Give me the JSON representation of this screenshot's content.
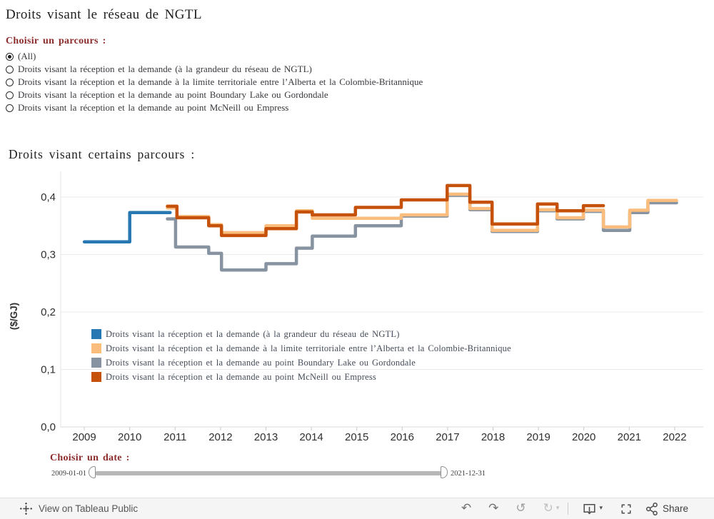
{
  "page": {
    "title": "Droits visant le réseau de NGTL"
  },
  "parameter": {
    "label": "Choisir un parcours :",
    "options": [
      {
        "label": "(All)",
        "selected": true
      },
      {
        "label": "Droits visant la réception et la demande (à la grandeur du réseau de NGTL)",
        "selected": false
      },
      {
        "label": "Droits visant la réception et la demande à la limite territoriale entre l’Alberta et la Colombie-Britannique",
        "selected": false
      },
      {
        "label": "Droits visant la réception et la demande au point Boundary Lake ou Gordondale",
        "selected": false
      },
      {
        "label": "Droits visant la réception et la demande au point McNeill ou Empress",
        "selected": false
      }
    ]
  },
  "chart": {
    "title": "Droits visant certains parcours :"
  },
  "chart_data": {
    "type": "line",
    "step": true,
    "title": "Droits visant certains parcours :",
    "xlabel": "",
    "ylabel": "($/GJ)",
    "unit": "$/GJ",
    "xlim": [
      2008.48,
      2022.63
    ],
    "ylim": [
      0,
      0.4472
    ],
    "grid": "horizontal",
    "legend_position": "inside-bottom-left",
    "x_ticks": [
      {
        "year": 2009,
        "label": "2009"
      },
      {
        "year": 2010,
        "label": "2010"
      },
      {
        "year": 2011,
        "label": "2011"
      },
      {
        "year": 2012,
        "label": "2012"
      },
      {
        "year": 2013,
        "label": "2013"
      },
      {
        "year": 2014,
        "label": "2014"
      },
      {
        "year": 2015,
        "label": "2015"
      },
      {
        "year": 2016,
        "label": "2016"
      },
      {
        "year": 2017,
        "label": "2017"
      },
      {
        "year": 2018,
        "label": "2018"
      },
      {
        "year": 2019,
        "label": "2019"
      },
      {
        "year": 2020,
        "label": "2020"
      },
      {
        "year": 2021,
        "label": "2021"
      },
      {
        "year": 2022,
        "label": "2022"
      }
    ],
    "y_ticks": [
      {
        "value": 0,
        "label": "0,0"
      },
      {
        "value": 0.1,
        "label": "0,1"
      },
      {
        "value": 0.2,
        "label": "0,2"
      },
      {
        "value": 0.3,
        "label": "0,3"
      },
      {
        "value": 0.4,
        "label": "0,4"
      }
    ],
    "draw_order": [
      0,
      2,
      1,
      3
    ],
    "series": [
      {
        "name": "Droits visant la réception et la demande (à la grandeur du réseau de NGTL)",
        "color": "#2677B2",
        "steps": [
          [
            2009.0,
            0.322
          ],
          [
            2010.0,
            0.373
          ]
        ],
        "end": 2010.89
      },
      {
        "name": "Droits visant la réception et la demande à la limite territoriale entre l’Alberta et la Colombie-Britannique",
        "color": "#FBBD7D",
        "steps": [
          [
            2010.83,
            0.381
          ],
          [
            2011.04,
            0.366
          ],
          [
            2011.74,
            0.352
          ],
          [
            2012.02,
            0.338
          ],
          [
            2013.0,
            0.35
          ],
          [
            2013.67,
            0.376
          ],
          [
            2014.02,
            0.363
          ],
          [
            2015.98,
            0.369
          ],
          [
            2016.99,
            0.405
          ],
          [
            2017.49,
            0.38
          ],
          [
            2017.98,
            0.342
          ],
          [
            2018.98,
            0.378
          ],
          [
            2019.41,
            0.364
          ],
          [
            2019.99,
            0.377
          ],
          [
            2020.43,
            0.348
          ],
          [
            2021.01,
            0.377
          ],
          [
            2021.41,
            0.394
          ]
        ],
        "end": 2022.04
      },
      {
        "name": "Droits visant la réception et la demande au point Boundary Lake ou Gordondale",
        "color": "#8793A0",
        "steps": [
          [
            2010.83,
            0.362
          ],
          [
            2011.01,
            0.313
          ],
          [
            2011.74,
            0.302
          ],
          [
            2012.02,
            0.273
          ],
          [
            2013.0,
            0.284
          ],
          [
            2013.67,
            0.311
          ],
          [
            2014.02,
            0.332
          ],
          [
            2014.97,
            0.35
          ],
          [
            2015.98,
            0.367
          ],
          [
            2016.99,
            0.403
          ],
          [
            2017.49,
            0.378
          ],
          [
            2017.98,
            0.34
          ],
          [
            2018.98,
            0.376
          ],
          [
            2019.41,
            0.362
          ],
          [
            2019.99,
            0.375
          ],
          [
            2020.43,
            0.342
          ],
          [
            2021.01,
            0.373
          ],
          [
            2021.41,
            0.39
          ]
        ],
        "end": 2022.04
      },
      {
        "name": "Droits visant la réception et la demande au point McNeill ou Empress",
        "color": "#C5510A",
        "steps": [
          [
            2010.83,
            0.384
          ],
          [
            2011.04,
            0.364
          ],
          [
            2011.74,
            0.35
          ],
          [
            2012.02,
            0.333
          ],
          [
            2013.0,
            0.345
          ],
          [
            2013.67,
            0.374
          ],
          [
            2014.02,
            0.369
          ],
          [
            2014.97,
            0.382
          ],
          [
            2015.98,
            0.395
          ],
          [
            2016.99,
            0.42
          ],
          [
            2017.49,
            0.391
          ],
          [
            2017.98,
            0.353
          ],
          [
            2018.98,
            0.388
          ],
          [
            2019.41,
            0.376
          ],
          [
            2019.99,
            0.385
          ]
        ],
        "end": 2020.43
      }
    ]
  },
  "date_filter": {
    "label": "Choisir un date :",
    "start_label": "2009-01-01",
    "end_label": "2021-12-31"
  },
  "footer": {
    "view_on": "View on Tableau Public",
    "share_label": "Share",
    "icons": {
      "undo": "↶",
      "redo": "↷",
      "replay": "↺",
      "refresh": "↻",
      "caret": "▾"
    }
  },
  "colors": {
    "parameter_label": "#8B2C2C",
    "axis_text": "#2f2f2f",
    "legend_text": "#454B58",
    "gridline": "#ebebeb"
  }
}
